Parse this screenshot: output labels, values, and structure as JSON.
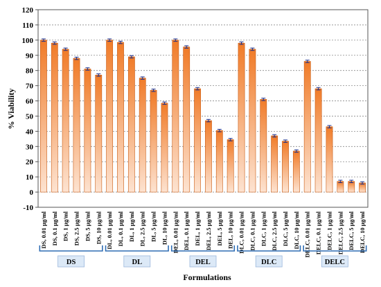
{
  "chart_data": {
    "type": "bar",
    "ylabel": "% Viability",
    "xlabel": "Formulations",
    "ylim": [
      -10,
      120
    ],
    "yticks": [
      -10,
      0,
      10,
      20,
      30,
      40,
      50,
      60,
      70,
      80,
      90,
      100,
      110,
      120
    ],
    "grid": true,
    "colors": {
      "bar_top": "#f07b28",
      "bar_bottom": "#fde3d1",
      "error": "#1a2f8c",
      "bracket": "#2f6db4"
    },
    "categories": [
      "DS, 0.01 µg/ml",
      "DS, 0.1 µg/ml",
      "DS, 1 µg/ml",
      "DS, 2.5 µg/ml",
      "DS, 5 µg/ml",
      "DS, 10 µg/ml",
      "DL, 0.01 µg/ml",
      "DL, 0.1 µg/ml",
      "DL, 1 µg/ml",
      "DL, 2.5 µg/ml",
      "DL, 5 µg/ml",
      "DL, 10 µg/ml",
      "DEL, 0.01 µg/ml",
      "DEL, 0.1 µg/ml",
      "DEL, 1 µg/ml",
      "DEL, 2.5 µg/ml",
      "DEL, 5 µg/ml",
      "DEL, 10 µg/ml",
      "DLC, 0.01 µg/ml",
      "DLC, 0.1 µg/ml",
      "DLC, 1 µg/ml",
      "DLC, 2.5 µg/ml",
      "DLC, 5 µg/ml",
      "DLC, 10 µg/ml",
      "DELC, 0.01 µg/ml",
      "DELC, 0.1 µg/ml",
      "DELC, 1 µg/ml",
      "DELC, 2.5 µg/ml",
      "DELC, 5 µg/ml",
      "DELC, 10 µg/ml"
    ],
    "values": [
      100,
      98,
      94,
      88,
      81,
      77,
      100,
      98.5,
      89,
      75,
      67,
      58.5,
      100,
      95.5,
      68,
      47,
      40.5,
      34.5,
      98,
      94,
      61,
      37,
      33.5,
      27,
      86,
      68,
      43,
      7,
      7,
      6
    ],
    "errors": [
      0.8,
      0.8,
      0.8,
      0.8,
      0.8,
      0.8,
      0.8,
      0.8,
      0.8,
      0.8,
      0.8,
      0.8,
      0.8,
      0.8,
      0.8,
      0.8,
      0.8,
      0.8,
      0.8,
      0.8,
      0.8,
      0.8,
      0.8,
      0.8,
      0.8,
      0.8,
      0.8,
      0.8,
      0.8,
      0.8
    ],
    "groups": [
      {
        "label": "DS",
        "count": 6
      },
      {
        "label": "DL",
        "count": 6
      },
      {
        "label": "DEL",
        "count": 6
      },
      {
        "label": "DLC",
        "count": 6
      },
      {
        "label": "DELC",
        "count": 6
      }
    ]
  }
}
